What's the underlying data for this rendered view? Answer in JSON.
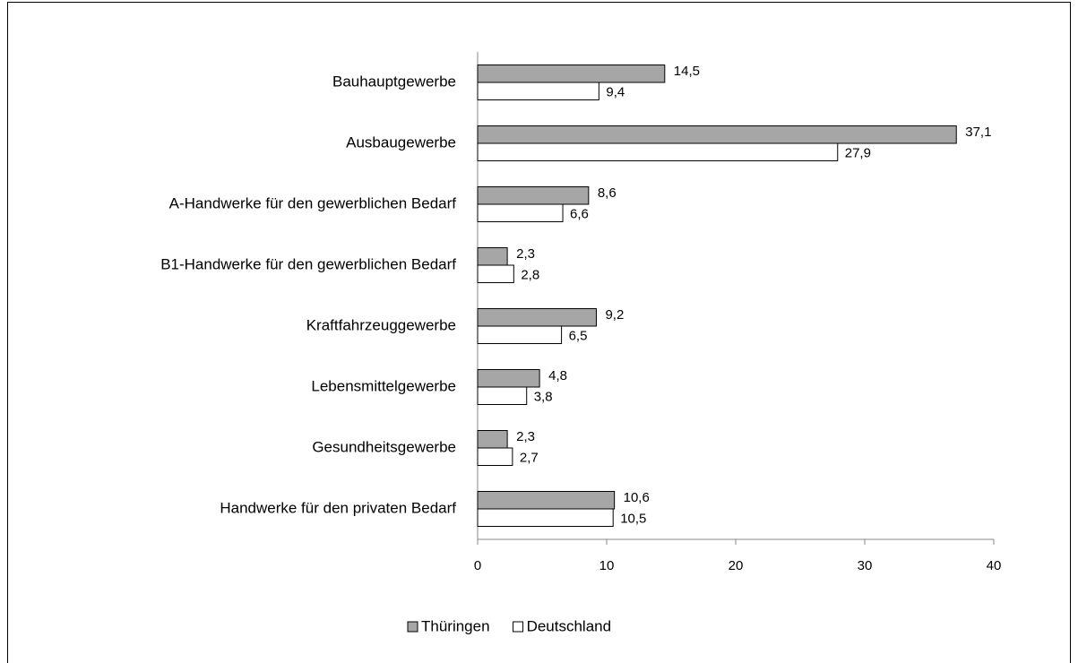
{
  "chart_data": {
    "type": "bar",
    "orientation": "horizontal",
    "categories": [
      "Bauhauptgewerbe",
      "Ausbaugewerbe",
      "A-Handwerke für den gewerblichen Bedarf",
      "B1-Handwerke für den gewerblichen Bedarf",
      "Kraftfahrzeuggewerbe",
      "Lebensmittelgewerbe",
      "Gesundheitsgewerbe",
      "Handwerke für den privaten Bedarf"
    ],
    "series": [
      {
        "name": "Thüringen",
        "color": "#a6a6a6",
        "values": [
          14.5,
          37.1,
          8.6,
          2.3,
          9.2,
          4.8,
          2.3,
          10.6
        ],
        "value_labels": [
          "14,5",
          "37,1",
          "8,6",
          "2,3",
          "9,2",
          "4,8",
          "2,3",
          "10,6"
        ]
      },
      {
        "name": "Deutschland",
        "color": "#ffffff",
        "values": [
          9.4,
          27.9,
          6.6,
          2.8,
          6.5,
          3.8,
          2.7,
          10.5
        ],
        "value_labels": [
          "9,4",
          "27,9",
          "6,6",
          "2,8",
          "6,5",
          "3,8",
          "2,7",
          "10,5"
        ]
      }
    ],
    "xlim": [
      0,
      40
    ],
    "xticks": [
      0,
      10,
      20,
      30,
      40
    ],
    "legend": "bottom"
  }
}
